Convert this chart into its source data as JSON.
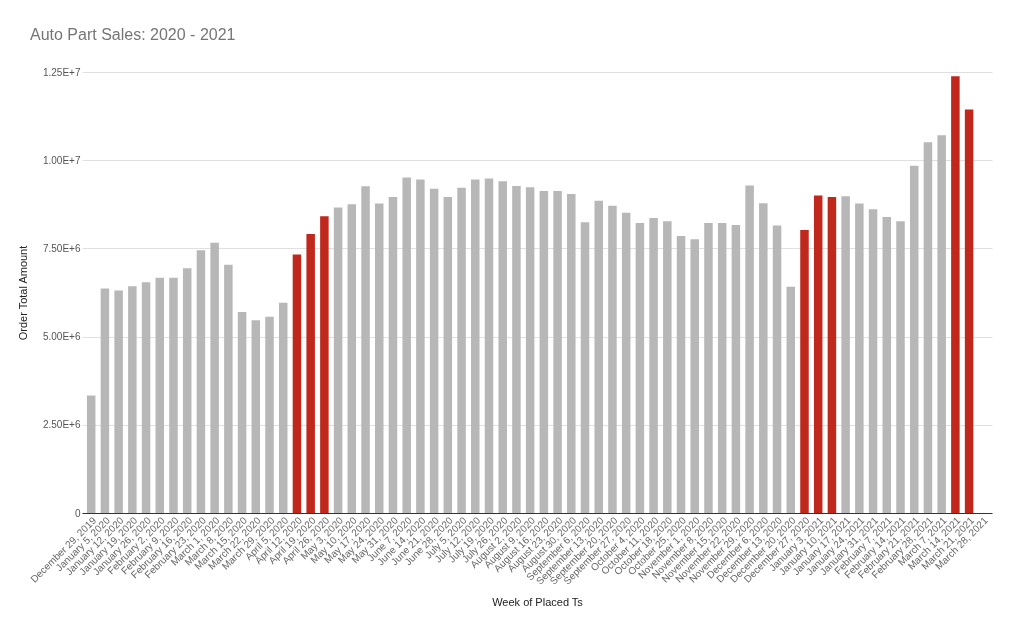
{
  "chart_data": {
    "type": "bar",
    "title": "Auto Part Sales: 2020 - 2021",
    "xlabel": "Week of Placed Ts",
    "ylabel": "Order Total Amount",
    "categories": [
      "December 29, 2019",
      "January 5, 2020",
      "January 12, 2020",
      "January 19, 2020",
      "January 26, 2020",
      "February 2, 2020",
      "February 9, 2020",
      "February 16, 2020",
      "February 23, 2020",
      "March 1, 2020",
      "March 8, 2020",
      "March 15, 2020",
      "March 22, 2020",
      "March 29, 2020",
      "April 5, 2020",
      "April 12, 2020",
      "April 19, 2020",
      "April 26, 2020",
      "May 3, 2020",
      "May 10, 2020",
      "May 17, 2020",
      "May 24, 2020",
      "May 31, 2020",
      "June 7, 2020",
      "June 14, 2020",
      "June 21, 2020",
      "June 28, 2020",
      "July 5, 2020",
      "July 12, 2020",
      "July 19, 2020",
      "July 26, 2020",
      "August 2, 2020",
      "August 9, 2020",
      "August 16, 2020",
      "August 23, 2020",
      "August 30, 2020",
      "September 6, 2020",
      "September 13, 2020",
      "September 20, 2020",
      "September 27, 2020",
      "October 4, 2020",
      "October 11, 2020",
      "October 18, 2020",
      "October 25, 2020",
      "November 1, 2020",
      "November 8, 2020",
      "November 15, 2020",
      "November 22, 2020",
      "November 29, 2020",
      "December 6, 2020",
      "December 13, 2020",
      "December 20, 2020",
      "December 27, 2020",
      "January 3, 2021",
      "January 10, 2021",
      "January 17, 2021",
      "January 24, 2021",
      "January 31, 2021",
      "February 7, 2021",
      "February 14, 2021",
      "February 21, 2021",
      "February 28, 2021",
      "March 7, 2021",
      "March 14, 2021",
      "March 21, 2021",
      "March 28, 2021"
    ],
    "values": [
      3330000,
      6360000,
      6310000,
      6430000,
      6540000,
      6670000,
      6670000,
      6940000,
      7450000,
      7660000,
      7040000,
      5700000,
      5460000,
      5560000,
      5960000,
      7330000,
      7910000,
      8410000,
      8660000,
      8750000,
      9260000,
      8770000,
      8960000,
      9510000,
      9450000,
      9190000,
      8960000,
      9220000,
      9450000,
      9480000,
      9400000,
      9270000,
      9230000,
      9130000,
      9130000,
      9040000,
      8240000,
      8850000,
      8710000,
      8510000,
      8220000,
      8360000,
      8270000,
      7850000,
      7760000,
      8220000,
      8220000,
      8160000,
      9280000,
      8780000,
      8150000,
      6410000,
      8020000,
      9000000,
      8960000,
      8980000,
      8770000,
      8610000,
      8390000,
      8270000,
      9840000,
      10510000,
      10710000,
      12380000,
      11440000,
      null
    ],
    "colors": [
      "#b7b7b7",
      "#b7b7b7",
      "#b7b7b7",
      "#b7b7b7",
      "#b7b7b7",
      "#b7b7b7",
      "#b7b7b7",
      "#b7b7b7",
      "#b7b7b7",
      "#b7b7b7",
      "#b7b7b7",
      "#b7b7b7",
      "#b7b7b7",
      "#b7b7b7",
      "#b7b7b7",
      "#c0281c",
      "#c0281c",
      "#c0281c",
      "#b7b7b7",
      "#b7b7b7",
      "#b7b7b7",
      "#b7b7b7",
      "#b7b7b7",
      "#b7b7b7",
      "#b7b7b7",
      "#b7b7b7",
      "#b7b7b7",
      "#b7b7b7",
      "#b7b7b7",
      "#b7b7b7",
      "#b7b7b7",
      "#b7b7b7",
      "#b7b7b7",
      "#b7b7b7",
      "#b7b7b7",
      "#b7b7b7",
      "#b7b7b7",
      "#b7b7b7",
      "#b7b7b7",
      "#b7b7b7",
      "#b7b7b7",
      "#b7b7b7",
      "#b7b7b7",
      "#b7b7b7",
      "#b7b7b7",
      "#b7b7b7",
      "#b7b7b7",
      "#b7b7b7",
      "#b7b7b7",
      "#b7b7b7",
      "#b7b7b7",
      "#b7b7b7",
      "#c0281c",
      "#c0281c",
      "#c0281c",
      "#b7b7b7",
      "#b7b7b7",
      "#b7b7b7",
      "#b7b7b7",
      "#b7b7b7",
      "#b7b7b7",
      "#b7b7b7",
      "#b7b7b7",
      "#c0281c",
      "#c0281c",
      "#b7b7b7"
    ],
    "ylim": [
      0,
      12500000
    ],
    "yticks": [
      0,
      {
        "value": 2500000,
        "label": "2.50E+6"
      },
      {
        "value": 5000000,
        "label": "5.00E+6"
      },
      {
        "value": 7500000,
        "label": "7.50E+6"
      },
      {
        "value": 10000000,
        "label": "1.00E+7"
      },
      {
        "value": 12500000,
        "label": "1.25E+7"
      }
    ],
    "grid": "y"
  }
}
